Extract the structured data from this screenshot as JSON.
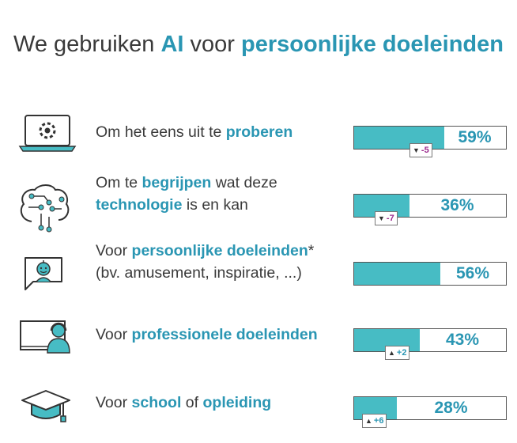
{
  "title": {
    "part1": "We gebruiken ",
    "part2": "AI",
    "part3": " voor ",
    "part4": "persoonlijke doeleinden"
  },
  "chart_data": {
    "type": "bar",
    "title": "We gebruiken AI voor persoonlijke doeleinden",
    "categories": [
      "Om het eens uit te proberen",
      "Om te begrijpen wat deze technologie is en kan",
      "Voor persoonlijke doeleinden* (bv. amusement, inspiratie, ...)",
      "Voor professionele doeleinden",
      "Voor school of opleiding"
    ],
    "values": [
      59,
      36,
      56,
      43,
      28
    ],
    "value_labels": [
      "59%",
      "36%",
      "56%",
      "43%",
      "28%"
    ],
    "changes": [
      "-5",
      "-7",
      "",
      "+2",
      "+6"
    ],
    "ylim": [
      0,
      100
    ],
    "bar_color": "#47bcc4",
    "accent_color": "#2a96b3",
    "down_color": "#9b2a8e"
  },
  "rows": [
    {
      "icon": "laptop-gear-icon",
      "line1": [
        {
          "t": "Om het eens uit te ",
          "b": false
        },
        {
          "t": "proberen",
          "b": true
        }
      ],
      "line2": []
    },
    {
      "icon": "brain-circuit-icon",
      "line1": [
        {
          "t": "Om te ",
          "b": false
        },
        {
          "t": "begrijpen",
          "b": true
        },
        {
          "t": " wat deze",
          "b": false
        }
      ],
      "line2": [
        {
          "t": "technologie",
          "b": true
        },
        {
          "t": " is en kan",
          "b": false
        }
      ]
    },
    {
      "icon": "chat-robot-icon",
      "line1": [
        {
          "t": "Voor ",
          "b": false
        },
        {
          "t": "persoonlijke doeleinden",
          "b": true
        },
        {
          "t": "*",
          "b": false
        }
      ],
      "line2": [
        {
          "t": "(bv. amusement, inspiratie, ...)",
          "b": false
        }
      ]
    },
    {
      "icon": "monitor-headset-person-icon",
      "line1": [
        {
          "t": "Voor ",
          "b": false
        },
        {
          "t": "professionele doeleinden",
          "b": true
        }
      ],
      "line2": []
    },
    {
      "icon": "graduation-cap-icon",
      "line1": [
        {
          "t": "Voor ",
          "b": false
        },
        {
          "t": "school",
          "b": true
        },
        {
          "t": " of ",
          "b": false
        },
        {
          "t": "opleiding",
          "b": true
        }
      ],
      "line2": []
    }
  ]
}
